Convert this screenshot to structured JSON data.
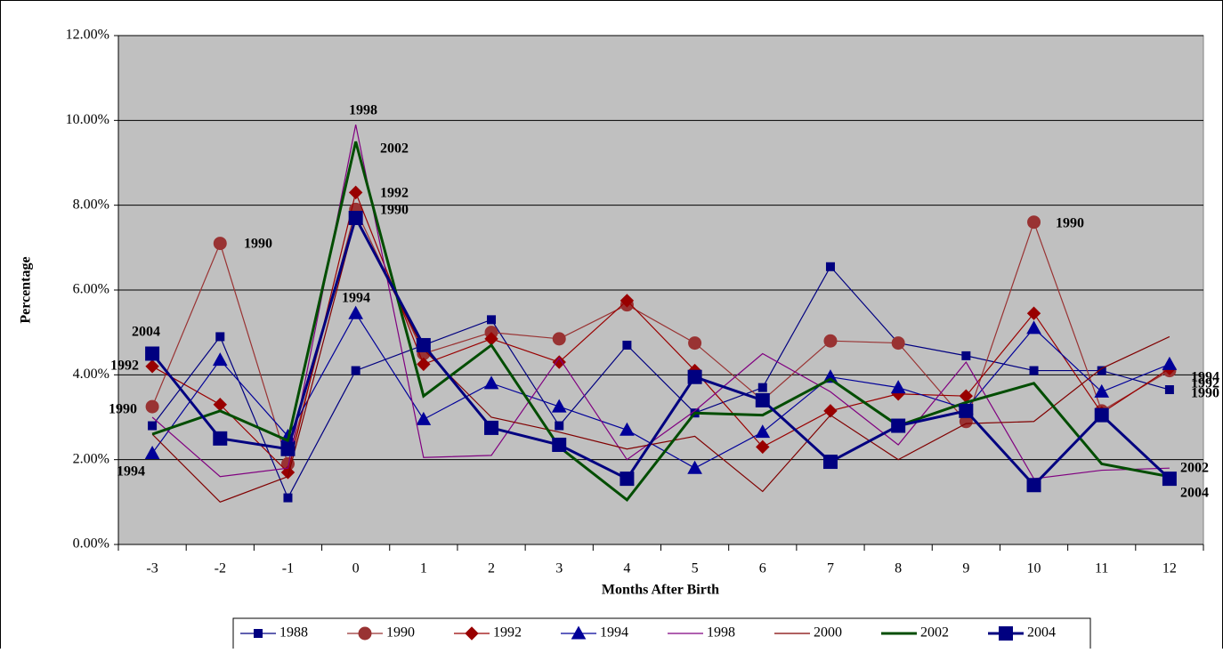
{
  "chart_data": {
    "type": "line",
    "x_label": "Months After Birth",
    "y_label": "Percentage",
    "categories": [
      "-3",
      "-2",
      "-1",
      "0",
      "1",
      "2",
      "3",
      "4",
      "5",
      "6",
      "7",
      "8",
      "9",
      "10",
      "11",
      "12"
    ],
    "ylim": [
      0,
      12
    ],
    "yticks": [
      {
        "value": 0,
        "label": "0.00%"
      },
      {
        "value": 2,
        "label": "2.00%"
      },
      {
        "value": 4,
        "label": "4.00%"
      },
      {
        "value": 6,
        "label": "6.00%"
      },
      {
        "value": 8,
        "label": "8.00%"
      },
      {
        "value": 10,
        "label": "10.00%"
      },
      {
        "value": 12,
        "label": "12.00%"
      }
    ],
    "grid": true,
    "background": "#c0c0c0",
    "legend": "bottom",
    "series": [
      {
        "name": "1988",
        "color": "#000080",
        "marker": "square",
        "line_width": 1.2,
        "marker_size": 9,
        "values": [
          2.8,
          4.9,
          1.1,
          4.1,
          4.7,
          5.3,
          2.8,
          4.7,
          3.1,
          3.7,
          6.55,
          4.75,
          4.45,
          4.1,
          4.1,
          3.65
        ]
      },
      {
        "name": "1990",
        "color": "#993333",
        "marker": "circle",
        "line_width": 1.2,
        "marker_size": 14,
        "values": [
          3.25,
          7.1,
          1.9,
          7.9,
          4.5,
          5.0,
          4.85,
          5.65,
          4.75,
          3.4,
          4.8,
          4.75,
          2.9,
          7.6,
          3.15,
          4.1
        ]
      },
      {
        "name": "1992",
        "color": "#990000",
        "marker": "diamond",
        "line_width": 1.2,
        "marker_size": 14,
        "values": [
          4.2,
          3.3,
          1.7,
          8.3,
          4.25,
          4.85,
          4.3,
          5.75,
          4.1,
          2.3,
          3.15,
          3.55,
          3.5,
          5.45,
          3.1,
          4.15
        ]
      },
      {
        "name": "1994",
        "color": "#000099",
        "marker": "triangle",
        "line_width": 1.2,
        "marker_size": 15,
        "values": [
          2.15,
          4.35,
          2.55,
          5.45,
          2.95,
          3.8,
          3.25,
          2.7,
          1.8,
          2.65,
          3.95,
          3.7,
          3.2,
          5.1,
          3.6,
          4.25
        ]
      },
      {
        "name": "1998",
        "color": "#800080",
        "marker": "none",
        "line_width": 1.2,
        "marker_size": 0,
        "values": [
          3.0,
          1.6,
          1.8,
          9.9,
          2.05,
          2.1,
          4.4,
          2.0,
          3.15,
          4.5,
          3.6,
          2.35,
          4.3,
          1.55,
          1.75,
          1.8
        ]
      },
      {
        "name": "2000",
        "color": "#800000",
        "marker": "none",
        "line_width": 1.2,
        "marker_size": 0,
        "values": [
          2.6,
          1.0,
          1.6,
          7.7,
          4.6,
          3.0,
          2.65,
          2.25,
          2.55,
          1.25,
          3.05,
          2.0,
          2.85,
          2.9,
          4.15,
          4.9
        ]
      },
      {
        "name": "2002",
        "color": "#004d00",
        "marker": "none",
        "line_width": 3,
        "marker_size": 0,
        "values": [
          2.6,
          3.15,
          2.45,
          9.5,
          3.5,
          4.7,
          2.3,
          1.05,
          3.1,
          3.05,
          3.9,
          2.8,
          3.35,
          3.8,
          1.9,
          1.6
        ]
      },
      {
        "name": "2004",
        "color": "#000080",
        "marker": "square",
        "line_width": 3,
        "marker_size": 15,
        "values": [
          4.5,
          2.5,
          2.25,
          7.7,
          4.7,
          2.75,
          2.35,
          1.55,
          3.95,
          3.4,
          1.95,
          2.8,
          3.15,
          1.4,
          3.05,
          1.55
        ]
      }
    ],
    "annotations": [
      "1998",
      "2002",
      "1992",
      "1990",
      "1994",
      "1990",
      "2004",
      "1992",
      "1990",
      "1994",
      "1990",
      "1994",
      "1990",
      "1992",
      "2002",
      "2004"
    ]
  }
}
